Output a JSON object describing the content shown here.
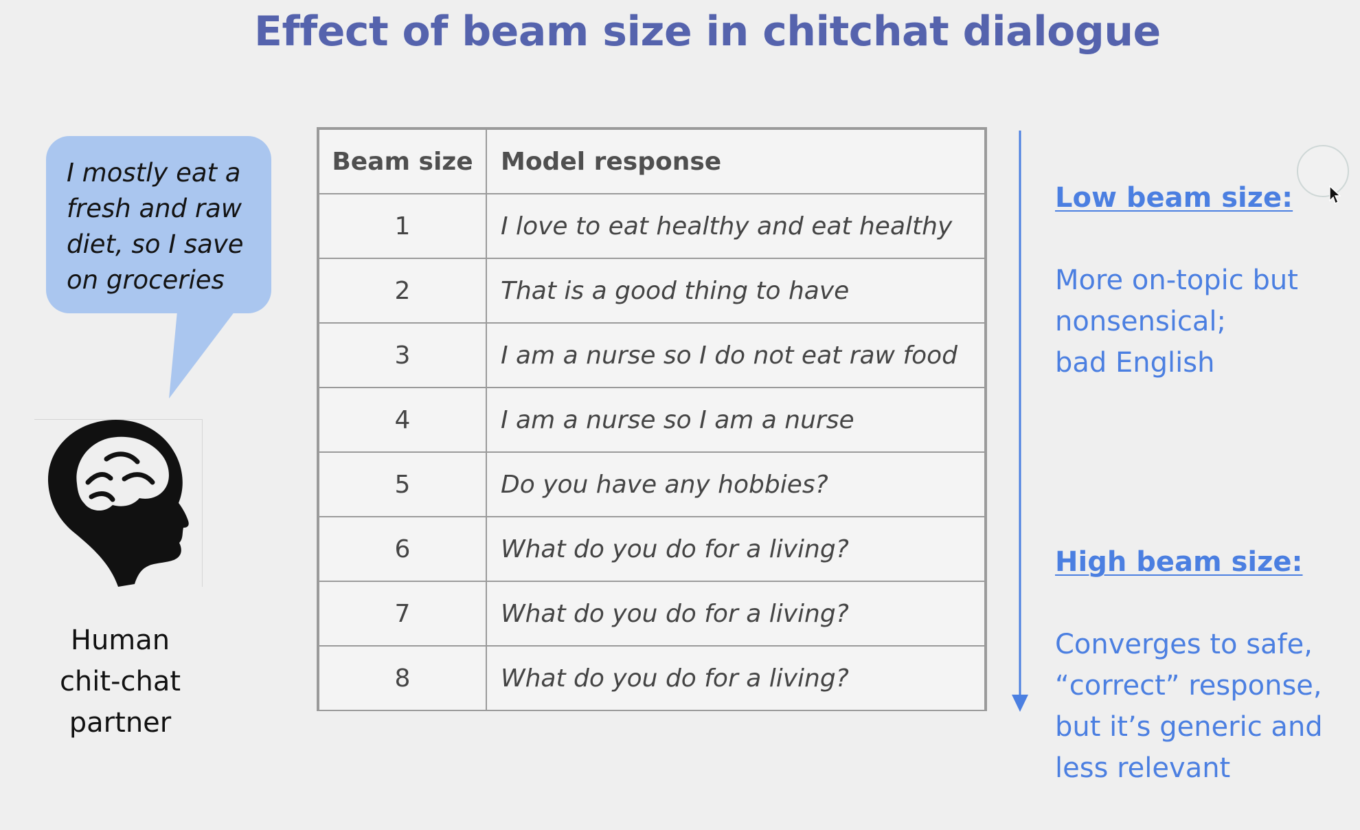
{
  "slide": {
    "title": "Effect of beam size in chitchat dialogue",
    "speech_bubble": {
      "text": "I mostly eat a\nfresh and raw\ndiet, so I save\non groceries"
    },
    "human_label": "Human\nchit-chat\npartner",
    "table": {
      "headers": {
        "beam_size": "Beam size",
        "model_response": "Model response"
      },
      "rows": [
        {
          "beam_size": "1",
          "response": "I love to eat healthy and eat healthy"
        },
        {
          "beam_size": "2",
          "response": "That is a good thing to have"
        },
        {
          "beam_size": "3",
          "response": "I am a nurse so I do not eat raw food"
        },
        {
          "beam_size": "4",
          "response": "I am a nurse so I am a nurse"
        },
        {
          "beam_size": "5",
          "response": "Do you have any hobbies?"
        },
        {
          "beam_size": "6",
          "response": "What do you do for a living?"
        },
        {
          "beam_size": "7",
          "response": "What do you do for a living?"
        },
        {
          "beam_size": "8",
          "response": "What do you do for a living?"
        }
      ]
    },
    "low_beam": {
      "heading": "Low beam size:",
      "body": "More on-topic but\nnonsensical;\nbad English"
    },
    "high_beam": {
      "heading": "High beam size:",
      "body": "Converges to safe,\n“correct” response,\nbut it’s generic and\nless relevant"
    },
    "icons": {
      "speech_bubble": "speech-bubble-icon",
      "head": "human-head-brain-icon",
      "arrow": "arrow-down-icon",
      "cursor": "mouse-cursor-icon"
    },
    "colors": {
      "title": "#5563ad",
      "bubble": "#aac6ef",
      "side_text": "#4b7fe1",
      "table_border": "#9a9a9a",
      "head_fill": "#111111"
    }
  }
}
